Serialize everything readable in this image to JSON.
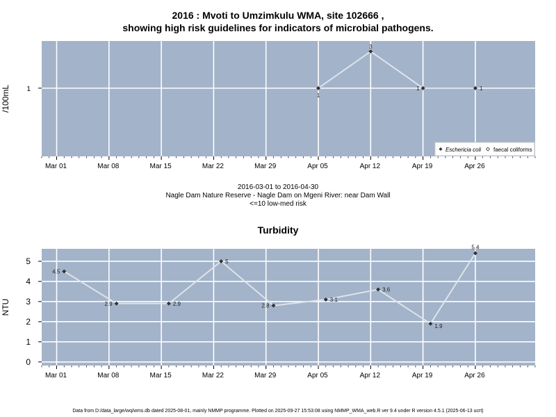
{
  "header": {
    "title_line1": "2016 : Mvoti to Umzimkulu WMA, site 102666 ,",
    "title_line2": "showing high risk guidelines for indicators of microbial pathogens."
  },
  "caption": {
    "line1": "2016-03-01 to 2016-04-30",
    "line2": "Nagle Dam Nature Reserve - Nagle Dam on Mgeni River: near Dam Wall",
    "line3": "<=10 low-med risk"
  },
  "footer": {
    "text": "Data from D:/data_large/wq/wms.db dated 2025-08-01, mainly NMMP programme. Plotted on 2025-09-27 15:53:08 using NMMP_WMA_web.R ver 9.4 under R version 4.5.1 (2025-06-13 ucrt)"
  },
  "colors": {
    "panel_bg": "#a3b3c9",
    "grid": "#ffffff",
    "series_line": "#dde3ec",
    "point": "#333333"
  },
  "chart_data": [
    {
      "type": "line",
      "title": "",
      "ylabel": "/100mL",
      "xlabel": "",
      "x_ticks": [
        "Mar 01",
        "Mar 08",
        "Mar 15",
        "Mar 22",
        "Mar 29",
        "Apr 05",
        "Apr 12",
        "Apr 19",
        "Apr 26"
      ],
      "x_tick_dates": [
        "2016-03-01",
        "2016-03-08",
        "2016-03-15",
        "2016-03-22",
        "2016-03-29",
        "2016-04-05",
        "2016-04-12",
        "2016-04-19",
        "2016-04-26"
      ],
      "xlim": [
        "2016-02-28",
        "2016-05-04"
      ],
      "y_scale": "log",
      "ylim": [
        0.13,
        4.1
      ],
      "y_ticks": [
        1
      ],
      "y_tick_labels": [
        "1"
      ],
      "grid": true,
      "legend_position": "bottom-right",
      "legend": [
        "Eschericia coli",
        "faecal coliforms"
      ],
      "series": [
        {
          "name": "Eschericia coli",
          "x": [
            "2016-04-05",
            "2016-04-12",
            "2016-04-19",
            "2016-04-26"
          ],
          "values": [
            1,
            3,
            1,
            1
          ],
          "labels": [
            "1",
            "3",
            "1",
            "1"
          ]
        }
      ]
    },
    {
      "type": "line",
      "title": "Turbidity",
      "ylabel": "NTU",
      "xlabel": "",
      "x_ticks": [
        "Mar 01",
        "Mar 08",
        "Mar 15",
        "Mar 22",
        "Mar 29",
        "Apr 05",
        "Apr 12",
        "Apr 19",
        "Apr 26"
      ],
      "x_tick_dates": [
        "2016-03-01",
        "2016-03-08",
        "2016-03-15",
        "2016-03-22",
        "2016-03-29",
        "2016-04-05",
        "2016-04-12",
        "2016-04-19",
        "2016-04-26"
      ],
      "xlim": [
        "2016-02-28",
        "2016-05-04"
      ],
      "ylim": [
        -0.18,
        5.62
      ],
      "y_ticks": [
        0,
        1,
        2,
        3,
        4,
        5
      ],
      "grid": true,
      "series": [
        {
          "name": "",
          "x": [
            "2016-03-02",
            "2016-03-09",
            "2016-03-16",
            "2016-03-23",
            "2016-03-30",
            "2016-04-06",
            "2016-04-13",
            "2016-04-20",
            "2016-04-26"
          ],
          "values": [
            4.5,
            2.9,
            2.9,
            5,
            2.8,
            3.1,
            3.6,
            1.9,
            5.4
          ],
          "labels": [
            "4.5",
            "2.9",
            "2.9",
            "5",
            "2.8",
            "3.1",
            "3.6",
            "1.9",
            "5.4"
          ]
        }
      ]
    }
  ]
}
